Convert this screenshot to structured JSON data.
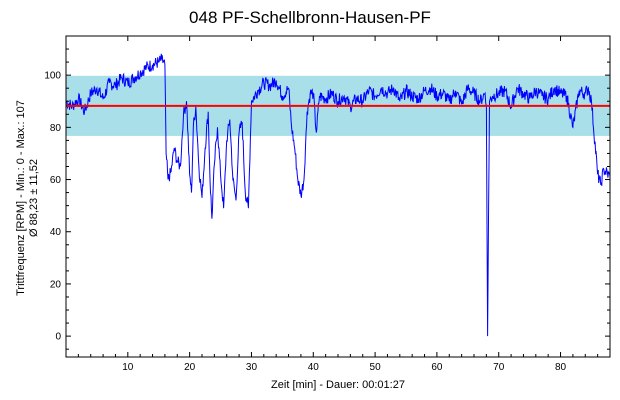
{
  "chart_data": {
    "type": "line",
    "title": "048 PF-Schellbronn-Hausen-PF",
    "xlabel": "Zeit [min] - Dauer: 00:01:27",
    "ylabel_line1": "Trittfrequenz [RPM] - Min.: 0 - Max.: 107",
    "ylabel_line2": "Ø 88,23 ± 11,52",
    "xlim": [
      0,
      88
    ],
    "ylim": [
      -8,
      115
    ],
    "xticks": [
      10,
      20,
      30,
      40,
      50,
      60,
      70,
      80
    ],
    "yticks": [
      0,
      20,
      40,
      60,
      80,
      100
    ],
    "mean": 88.23,
    "std": 11.52,
    "band": [
      76.71,
      99.75
    ],
    "colors": {
      "line": "#0000ff",
      "mean": "#ff0000",
      "band": "#a8dfe8"
    },
    "series": [
      {
        "x": [
          0,
          1,
          2,
          3,
          4,
          5,
          6,
          7,
          8,
          9,
          10,
          11,
          12,
          13,
          14,
          15,
          15.5,
          16,
          16.2,
          16.5,
          17,
          17.5,
          18,
          18.5,
          19,
          19.5,
          20,
          20.3,
          20.6,
          21,
          21.5,
          22,
          22.5,
          23,
          23.3,
          23.6,
          24,
          24.5,
          25,
          25.5,
          26,
          26.5,
          27,
          27.5,
          28,
          28.5,
          29,
          29.5,
          30,
          31,
          32,
          33,
          34,
          35,
          36,
          36.5,
          37,
          37.5,
          38,
          38.5,
          39,
          39.5,
          40,
          40.5,
          41,
          42,
          43,
          44,
          45,
          46,
          47,
          48,
          49,
          50,
          51,
          52,
          53,
          54,
          55,
          56,
          57,
          58,
          59,
          60,
          61,
          62,
          63,
          64,
          65,
          66,
          67,
          67.5,
          67.8,
          68,
          68.2,
          68.5,
          69,
          70,
          71,
          72,
          73,
          74,
          75,
          76,
          77,
          78,
          79,
          80,
          81,
          82,
          83,
          84,
          84.5,
          85,
          86,
          86.5,
          87,
          88
        ],
        "y": [
          90,
          88,
          91,
          86,
          93,
          95,
          91,
          97,
          96,
          99,
          97,
          99,
          101,
          103,
          104,
          105,
          106,
          104,
          70,
          60,
          63,
          72,
          67,
          65,
          85,
          90,
          62,
          55,
          80,
          88,
          65,
          53,
          72,
          86,
          60,
          45,
          66,
          80,
          62,
          49,
          75,
          83,
          60,
          52,
          78,
          82,
          55,
          49,
          90,
          94,
          97,
          96,
          98,
          92,
          95,
          80,
          72,
          60,
          54,
          60,
          86,
          93,
          93,
          78,
          92,
          91,
          93,
          90,
          92,
          88,
          91,
          90,
          94,
          92,
          95,
          93,
          95,
          90,
          94,
          92,
          91,
          94,
          95,
          92,
          93,
          90,
          94,
          89,
          95,
          93,
          90,
          92,
          93,
          88,
          0,
          90,
          92,
          93,
          94,
          88,
          95,
          93,
          91,
          94,
          92,
          91,
          95,
          93,
          92,
          80,
          94,
          93,
          95,
          90,
          62,
          58,
          64,
          61
        ]
      }
    ]
  }
}
